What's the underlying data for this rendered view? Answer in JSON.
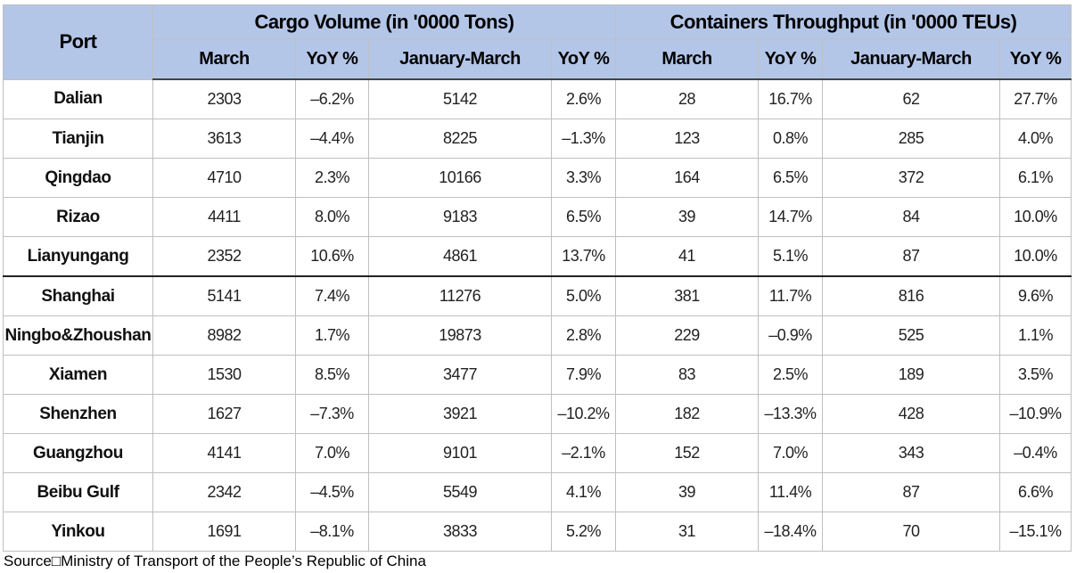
{
  "headers": {
    "port": "Port",
    "cargo_group": "Cargo Volume (in '0000 Tons)",
    "container_group": "Containers Throughput (in '0000 TEUs)",
    "sub": [
      "March",
      "YoY %",
      "January-March",
      "YoY %",
      "March",
      "YoY %",
      "January-March",
      "YoY %"
    ]
  },
  "rows": [
    {
      "port": "Dalian",
      "cells": [
        "2303",
        "–6.2%",
        "5142",
        "2.6%",
        "28",
        "16.7%",
        "62",
        "27.7%"
      ]
    },
    {
      "port": "Tianjin",
      "cells": [
        "3613",
        "–4.4%",
        "8225",
        "–1.3%",
        "123",
        "0.8%",
        "285",
        "4.0%"
      ]
    },
    {
      "port": "Qingdao",
      "cells": [
        "4710",
        "2.3%",
        "10166",
        "3.3%",
        "164",
        "6.5%",
        "372",
        "6.1%"
      ]
    },
    {
      "port": "Rizao",
      "cells": [
        "4411",
        "8.0%",
        "9183",
        "6.5%",
        "39",
        "14.7%",
        "84",
        "10.0%"
      ]
    },
    {
      "port": "Lianyungang",
      "cells": [
        "2352",
        "10.6%",
        "4861",
        "13.7%",
        "41",
        "5.1%",
        "87",
        "10.0%"
      ]
    },
    {
      "port": "Shanghai",
      "cells": [
        "5141",
        "7.4%",
        "11276",
        "5.0%",
        "381",
        "11.7%",
        "816",
        "9.6%"
      ]
    },
    {
      "port": "Ningbo&Zhoushan",
      "cells": [
        "8982",
        "1.7%",
        "19873",
        "2.8%",
        "229",
        "–0.9%",
        "525",
        "1.1%"
      ]
    },
    {
      "port": "Xiamen",
      "cells": [
        "1530",
        "8.5%",
        "3477",
        "7.9%",
        "83",
        "2.5%",
        "189",
        "3.5%"
      ]
    },
    {
      "port": "Shenzhen",
      "cells": [
        "1627",
        "–7.3%",
        "3921",
        "–10.2%",
        "182",
        "–13.3%",
        "428",
        "–10.9%"
      ]
    },
    {
      "port": "Guangzhou",
      "cells": [
        "4141",
        "7.0%",
        "9101",
        "–2.1%",
        "152",
        "7.0%",
        "343",
        "–0.4%"
      ]
    },
    {
      "port": "Beibu Gulf",
      "cells": [
        "2342",
        "–4.5%",
        "5549",
        "4.1%",
        "39",
        "11.4%",
        "87",
        "6.6%"
      ]
    },
    {
      "port": "Yinkou",
      "cells": [
        "1691",
        "–8.1%",
        "3833",
        "5.2%",
        "31",
        "–18.4%",
        "70",
        "–15.1%"
      ]
    }
  ],
  "source": "Source□Ministry of Transport of the People’s Republic of China"
}
